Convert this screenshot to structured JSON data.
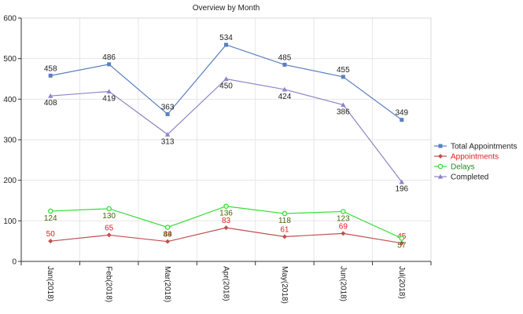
{
  "chart_data": {
    "type": "line",
    "title": "Overview by Month",
    "xlabel": "",
    "ylabel": "",
    "ylim": [
      0,
      600
    ],
    "yticks": [
      0,
      100,
      200,
      300,
      400,
      500,
      600
    ],
    "grid": true,
    "legend_position": "right",
    "categories": [
      "Jan(2018)",
      "Feb(2018)",
      "Mar(2018)",
      "Apr(2018)",
      "May(2018)",
      "Jun(2018)",
      "Jul(2018)"
    ],
    "series": [
      {
        "name": "Total Appointments",
        "color": "#5b7fbf",
        "label_color": "#222222",
        "marker": "square",
        "label_side": "above",
        "values": [
          458,
          486,
          363,
          534,
          485,
          455,
          349
        ]
      },
      {
        "name": "Appointments",
        "color": "#c0504d",
        "label_color": "#e02020",
        "marker": "diamond",
        "label_side": "above",
        "values": [
          50,
          65,
          49,
          83,
          61,
          69,
          45
        ]
      },
      {
        "name": "Delays",
        "color": "#33dd33",
        "label_color": "#446600",
        "marker": "circle",
        "label_side": "below",
        "values": [
          124,
          130,
          84,
          136,
          118,
          123,
          57
        ]
      },
      {
        "name": "Completed",
        "color": "#8e84c8",
        "label_color": "#222222",
        "marker": "triangle",
        "label_side": "below",
        "values": [
          408,
          419,
          313,
          450,
          424,
          386,
          196
        ]
      }
    ]
  }
}
